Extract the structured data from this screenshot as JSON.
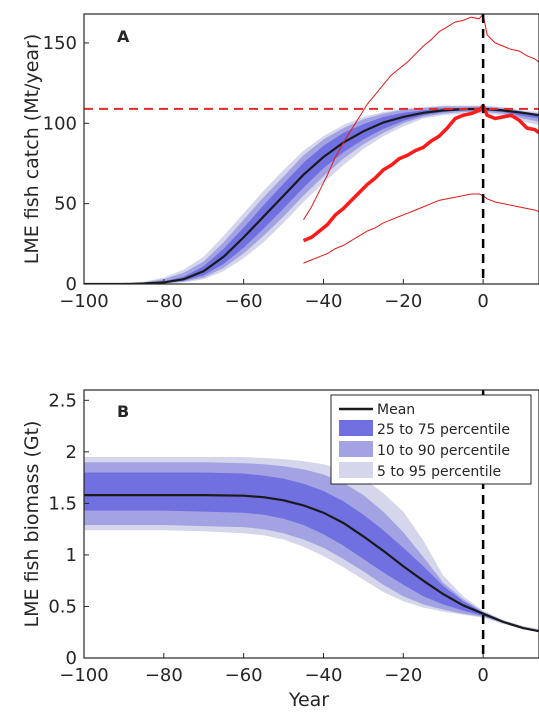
{
  "chart_data": [
    {
      "type": "area",
      "panel_label": "A",
      "ylabel": "LME fish catch (Mt/year)",
      "xlabel": "",
      "xlim": [
        -100,
        14
      ],
      "ylim": [
        0,
        168
      ],
      "xticks": [
        -100,
        -80,
        -60,
        -40,
        -20,
        0
      ],
      "yticks": [
        0,
        50,
        100,
        150
      ],
      "reference_lines": {
        "horizontal_y": 109,
        "vertical_x": 0
      },
      "x": [
        -100,
        -90,
        -85,
        -80,
        -75,
        -70,
        -65,
        -60,
        -55,
        -50,
        -45,
        -40,
        -35,
        -30,
        -25,
        -20,
        -15,
        -10,
        -5,
        0,
        5,
        10,
        14
      ],
      "model": {
        "mean": [
          0,
          0,
          0.3,
          1,
          3,
          8,
          17,
          29,
          42,
          55,
          68,
          79,
          88,
          95,
          100.5,
          104,
          106.5,
          108,
          108.8,
          109,
          108,
          106.5,
          105
        ],
        "p5": [
          0,
          0,
          0,
          0.2,
          1,
          3,
          8,
          16,
          26,
          38,
          51,
          63,
          74,
          84,
          92,
          98,
          103,
          105,
          106,
          106,
          105,
          101,
          99
        ],
        "p95": [
          0,
          0,
          1.5,
          4,
          9,
          17,
          30,
          44,
          58,
          71,
          83,
          92,
          99,
          104,
          107,
          109,
          110,
          111,
          111,
          111,
          110,
          108,
          107
        ],
        "p10": [
          0,
          0,
          0.1,
          0.4,
          1.5,
          4,
          10,
          19,
          30,
          42,
          55,
          67,
          78,
          87,
          94,
          100,
          104,
          106,
          107,
          107,
          106,
          103,
          101
        ],
        "p90": [
          0,
          0,
          1,
          3,
          7,
          14,
          26,
          40,
          54,
          67,
          80,
          90,
          97,
          102.5,
          106,
          108.5,
          109.5,
          110.5,
          110.5,
          110.5,
          109.5,
          107.5,
          106
        ],
        "p25": [
          0,
          0,
          0.2,
          0.6,
          2,
          5.5,
          12.5,
          22.5,
          34.5,
          47,
          60,
          72,
          82,
          90,
          96.5,
          101.5,
          105,
          107,
          108,
          108,
          107,
          104.5,
          103
        ],
        "p75": [
          0,
          0,
          0.5,
          1.6,
          4.5,
          11,
          22,
          35,
          49,
          62.5,
          75.5,
          86,
          94,
          99.5,
          104,
          106.5,
          108,
          109.5,
          109.5,
          109.5,
          108.8,
          107,
          105.5
        ]
      },
      "observed": {
        "x": [
          -45,
          -43,
          -41,
          -39,
          -37,
          -35,
          -33,
          -31,
          -29,
          -27,
          -25,
          -23,
          -21,
          -19,
          -17,
          -15,
          -13,
          -11,
          -9,
          -7,
          -5,
          -3,
          -1,
          0,
          1,
          3,
          5,
          7,
          9,
          11,
          13,
          14
        ],
        "value": [
          27,
          29,
          33,
          37,
          43,
          47,
          52,
          57,
          62,
          66,
          71,
          74,
          78,
          80,
          83,
          85,
          89,
          92,
          97,
          103,
          105,
          106,
          108,
          111,
          105,
          103,
          104,
          105,
          102,
          97,
          96,
          94
        ],
        "upper": [
          40,
          48,
          58,
          68,
          79,
          88,
          96,
          104,
          112,
          118,
          124,
          130,
          134,
          138,
          143,
          148,
          152,
          157,
          160,
          163,
          164,
          166,
          165,
          168,
          155,
          150,
          148,
          146,
          145,
          142,
          140,
          138
        ],
        "lower": [
          13,
          15,
          17,
          19,
          22,
          24,
          27,
          30,
          33,
          35,
          38,
          40,
          42,
          44,
          46,
          48,
          50,
          52,
          53,
          54,
          55,
          56,
          56,
          55,
          53,
          51,
          50,
          49,
          48,
          47,
          46,
          45
        ]
      }
    },
    {
      "type": "area",
      "panel_label": "B",
      "ylabel": "LME fish biomass (Gt)",
      "xlabel": "Year",
      "xlim": [
        -100,
        14
      ],
      "ylim": [
        0,
        2.6
      ],
      "xticks": [
        -100,
        -80,
        -60,
        -40,
        -20,
        0
      ],
      "yticks": [
        0,
        0.5,
        1,
        1.5,
        2,
        2.5
      ],
      "ytick_labels": [
        "0",
        "0.5",
        "1",
        "1.5",
        "2",
        "2.5"
      ],
      "reference_lines": {
        "vertical_x": 0
      },
      "x": [
        -100,
        -90,
        -80,
        -70,
        -60,
        -55,
        -50,
        -45,
        -40,
        -35,
        -30,
        -25,
        -20,
        -15,
        -10,
        -5,
        0,
        5,
        10,
        14
      ],
      "mean": [
        1.58,
        1.58,
        1.58,
        1.58,
        1.575,
        1.56,
        1.53,
        1.48,
        1.41,
        1.31,
        1.18,
        1.04,
        0.89,
        0.75,
        0.62,
        0.51,
        0.43,
        0.35,
        0.29,
        0.26
      ],
      "p5": [
        1.24,
        1.24,
        1.24,
        1.23,
        1.21,
        1.19,
        1.15,
        1.08,
        0.99,
        0.88,
        0.76,
        0.64,
        0.55,
        0.49,
        0.45,
        0.42,
        0.39,
        0.33,
        0.28,
        0.25
      ],
      "p95": [
        1.95,
        1.95,
        1.95,
        1.95,
        1.95,
        1.94,
        1.93,
        1.91,
        1.88,
        1.82,
        1.74,
        1.6,
        1.42,
        1.14,
        0.8,
        0.6,
        0.46,
        0.37,
        0.31,
        0.28
      ],
      "p10": [
        1.29,
        1.29,
        1.29,
        1.28,
        1.27,
        1.25,
        1.21,
        1.15,
        1.07,
        0.96,
        0.84,
        0.71,
        0.6,
        0.52,
        0.47,
        0.43,
        0.4,
        0.34,
        0.285,
        0.255
      ],
      "p90": [
        1.9,
        1.9,
        1.9,
        1.9,
        1.89,
        1.88,
        1.86,
        1.83,
        1.78,
        1.7,
        1.58,
        1.42,
        1.22,
        0.98,
        0.73,
        0.57,
        0.45,
        0.365,
        0.305,
        0.275
      ],
      "p25": [
        1.43,
        1.43,
        1.43,
        1.42,
        1.41,
        1.39,
        1.35,
        1.29,
        1.2,
        1.09,
        0.96,
        0.83,
        0.71,
        0.6,
        0.52,
        0.46,
        0.41,
        0.345,
        0.288,
        0.258
      ],
      "p75": [
        1.8,
        1.8,
        1.8,
        1.8,
        1.79,
        1.77,
        1.74,
        1.69,
        1.62,
        1.52,
        1.39,
        1.24,
        1.07,
        0.89,
        0.7,
        0.55,
        0.44,
        0.355,
        0.295,
        0.265
      ],
      "legend": {
        "position": "top-right",
        "entries": [
          "Mean",
          "25 to 75 percentile",
          "10 to 90 percentile",
          "5 to 95 percentile"
        ]
      }
    }
  ],
  "colors": {
    "band_5_95": "#d5d5eb",
    "band_10_90": "#a3a3e3",
    "band_25_75": "#7070e0",
    "mean_line": "#1a1a1a",
    "observed": "#ff1a1a",
    "observed_range": "#e31a1a",
    "ref_hline": "#e62a2a",
    "ref_vline": "#000000",
    "axis": "#262626"
  }
}
